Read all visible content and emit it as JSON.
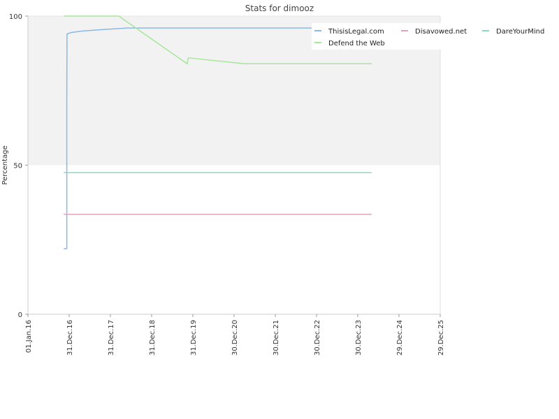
{
  "chart_data": {
    "type": "line",
    "title": "Stats for dimooz",
    "xlabel": "",
    "ylabel": "Percentage",
    "ylim": [
      0,
      100
    ],
    "yticks": [
      0,
      50,
      100
    ],
    "xlim": [
      "2016-01-01",
      "2025-12-29"
    ],
    "xticks": [
      {
        "date": "2016-01-01",
        "label": "01.Jan.16"
      },
      {
        "date": "2016-12-31",
        "label": "31.Dec.16"
      },
      {
        "date": "2017-12-31",
        "label": "31.Dec.17"
      },
      {
        "date": "2018-12-31",
        "label": "31.Dec.18"
      },
      {
        "date": "2019-12-31",
        "label": "31.Dec.19"
      },
      {
        "date": "2020-12-30",
        "label": "30.Dec.20"
      },
      {
        "date": "2021-12-30",
        "label": "30.Dec.21"
      },
      {
        "date": "2022-12-30",
        "label": "30.Dec.22"
      },
      {
        "date": "2023-12-30",
        "label": "30.Dec.23"
      },
      {
        "date": "2024-12-29",
        "label": "29.Dec.24"
      },
      {
        "date": "2025-12-29",
        "label": "29.Dec.25"
      }
    ],
    "shaded_band": {
      "from": 50,
      "to": 100,
      "color": "#f2f2f2"
    },
    "grid": false,
    "legend_position": "top-right",
    "series": [
      {
        "name": "ThisisLegal.com",
        "color": "#8ab8e6",
        "points": [
          [
            "2016-11-13",
            22
          ],
          [
            "2016-12-10",
            22
          ],
          [
            "2016-12-10",
            72
          ],
          [
            "2016-12-12",
            94
          ],
          [
            "2017-01-20",
            94.5
          ],
          [
            "2017-05-01",
            95
          ],
          [
            "2017-11-01",
            95.5
          ],
          [
            "2018-06-01",
            96
          ],
          [
            "2023-12-30",
            96
          ]
        ]
      },
      {
        "name": "Disavowed.net",
        "color": "#e6a0b8",
        "points": [
          [
            "2016-11-13",
            33.5
          ],
          [
            "2024-05-01",
            33.5
          ]
        ]
      },
      {
        "name": "DareYourMind",
        "color": "#88dcc0",
        "points": [
          [
            "2016-11-13",
            47.5
          ],
          [
            "2024-05-01",
            47.5
          ]
        ]
      },
      {
        "name": "Defend the Web",
        "color": "#a6e69a",
        "points": [
          [
            "2016-11-13",
            100
          ],
          [
            "2018-03-15",
            100
          ],
          [
            "2019-11-10",
            84
          ],
          [
            "2019-11-20",
            86
          ],
          [
            "2021-04-01",
            84
          ],
          [
            "2024-05-01",
            84
          ]
        ]
      }
    ]
  }
}
